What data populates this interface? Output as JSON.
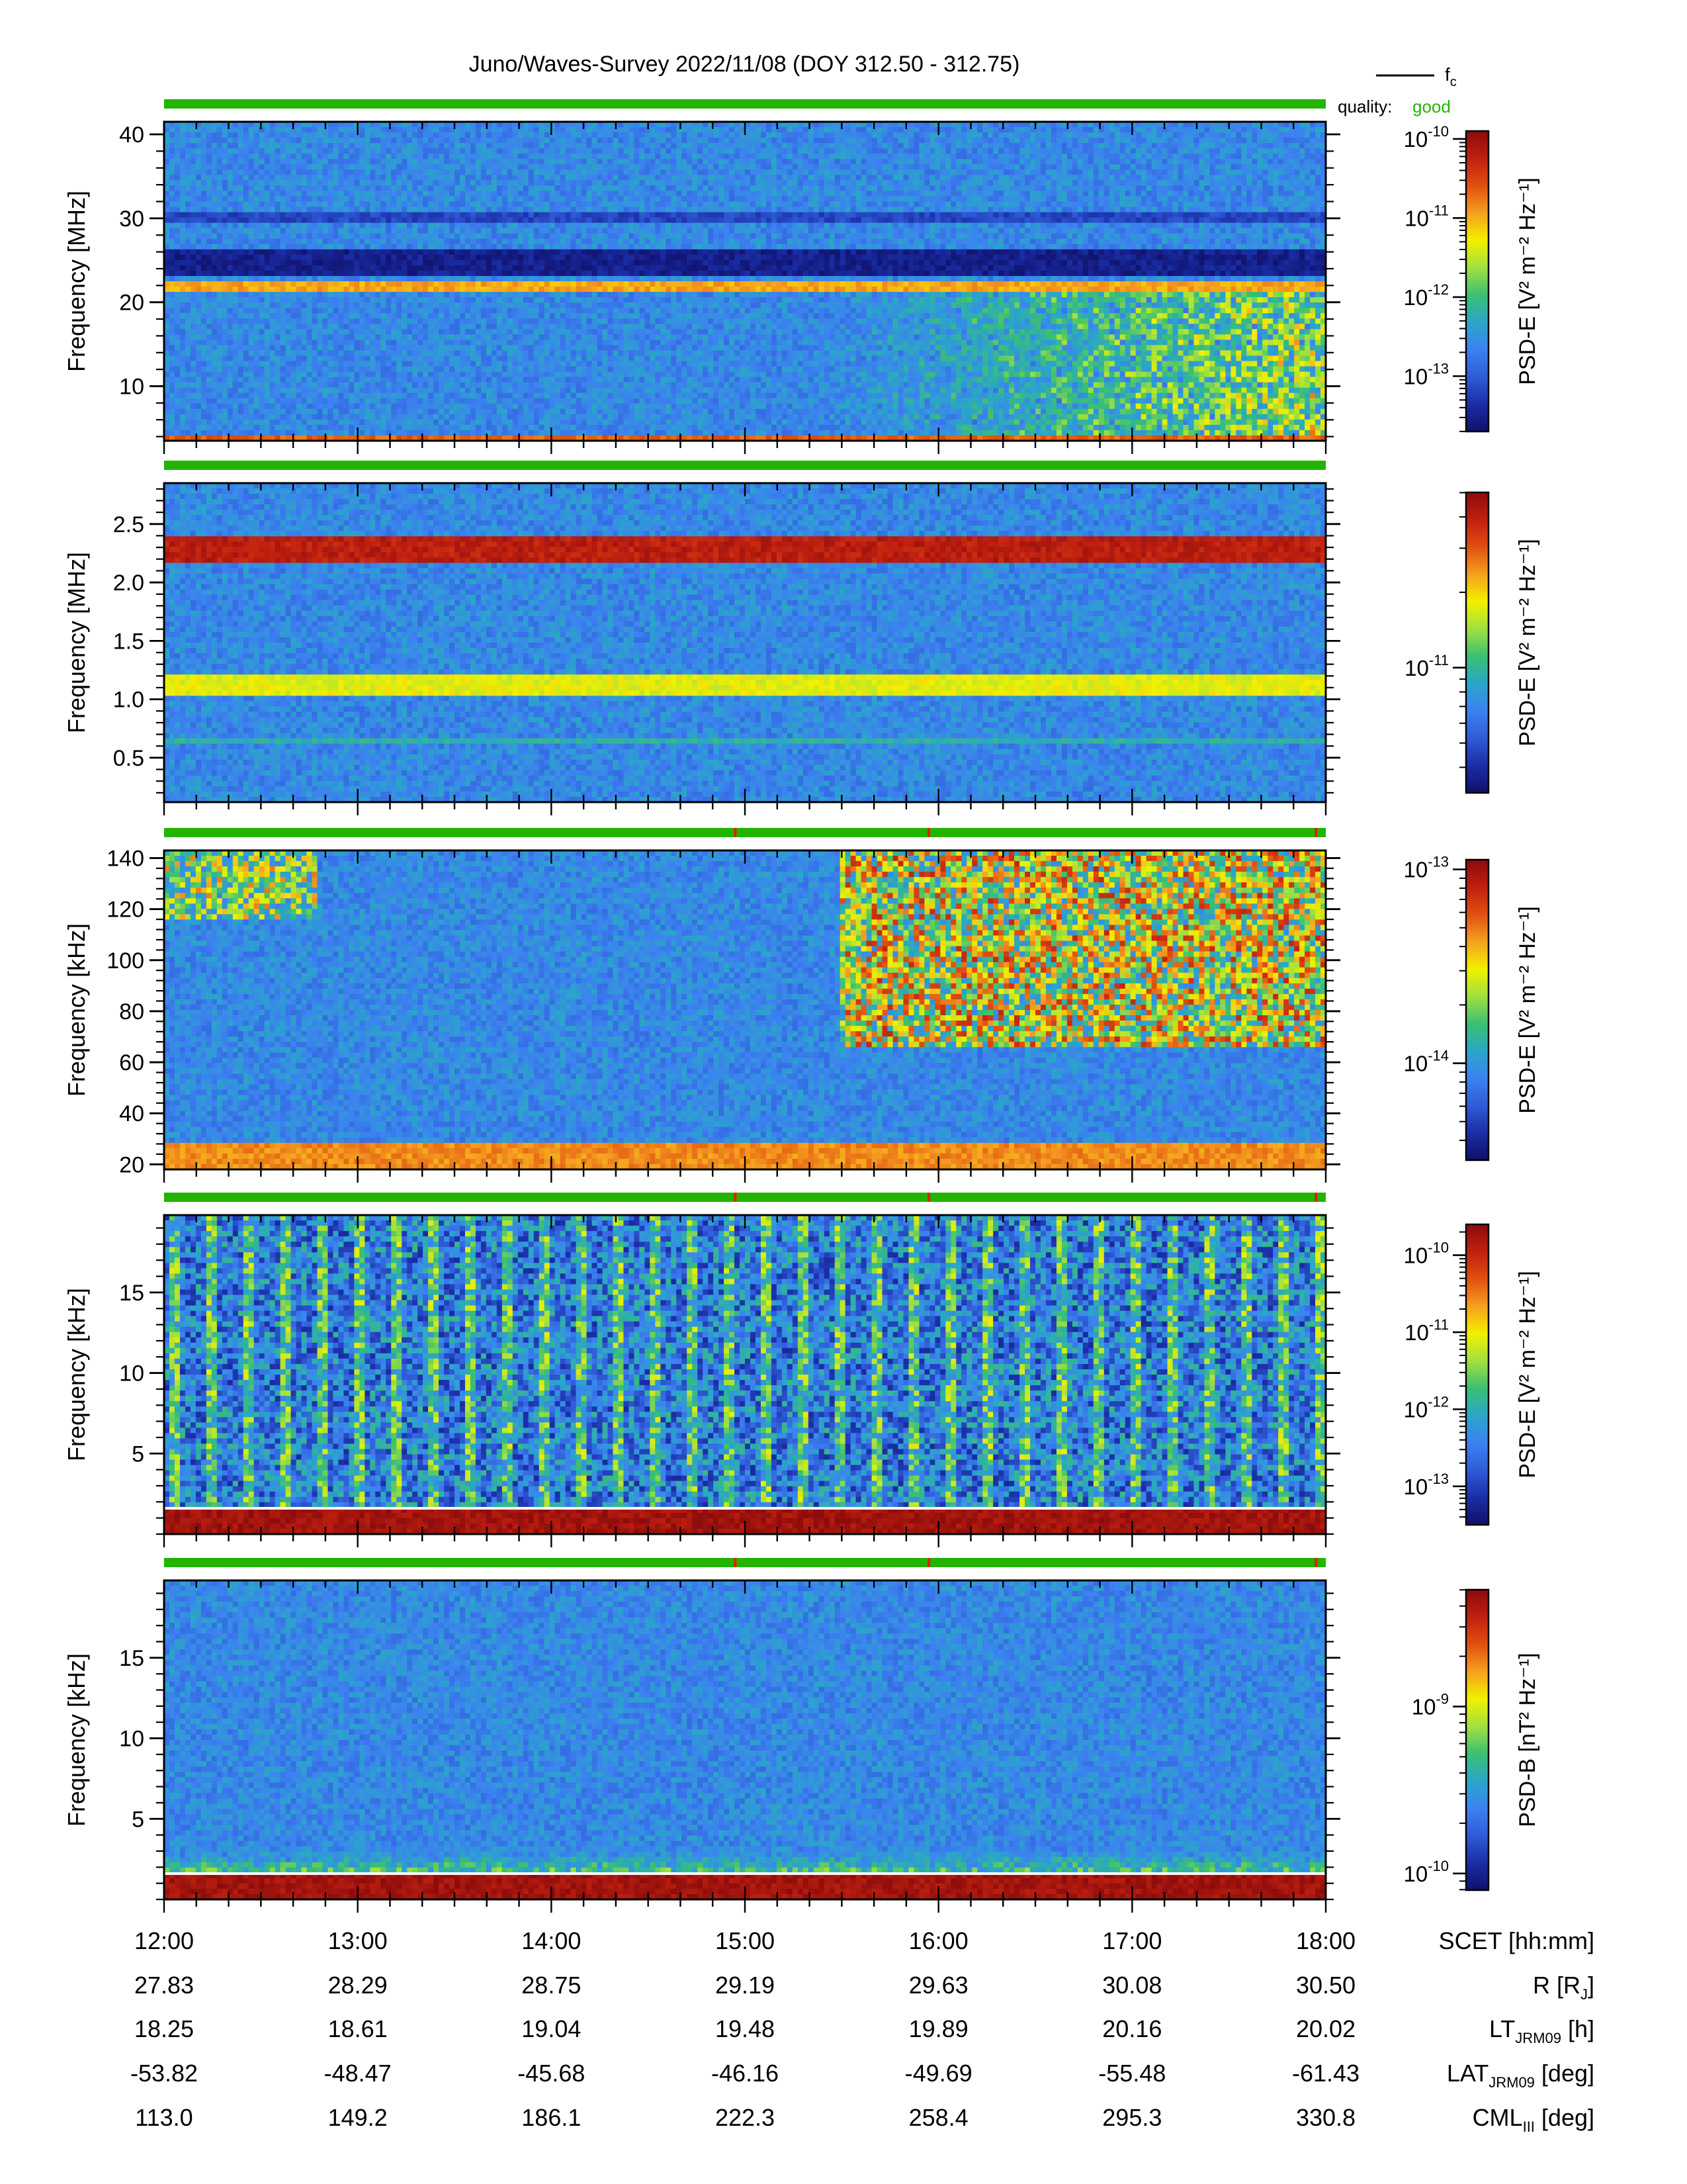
{
  "title": "Juno/Waves-Survey  2022/11/08 (DOY 312.50 - 312.75)",
  "legend": {
    "line_label": "f",
    "line_label_sub": "c",
    "quality_label": "quality:",
    "quality_value": "good"
  },
  "colors": {
    "quality_good": "#22b400",
    "quality_flag": "#e02000",
    "fc_line": "#ffffff",
    "cmap": [
      "#10106a",
      "#1a2ea6",
      "#2f5cd8",
      "#3c82f0",
      "#2aa6c8",
      "#3cc070",
      "#a0e040",
      "#f2f000",
      "#f5a020",
      "#e05010",
      "#c02010",
      "#8a0c0c"
    ]
  },
  "time_axis": {
    "rows": [
      {
        "label_main": "SCET",
        "label_sub": "",
        "label_tail": " [hh:mm]",
        "values": [
          "12:00",
          "13:00",
          "14:00",
          "15:00",
          "16:00",
          "17:00",
          "18:00"
        ]
      },
      {
        "label_main": "R [R",
        "label_sub": "J",
        "label_tail": "]",
        "values": [
          "27.83",
          "28.29",
          "28.75",
          "29.19",
          "29.63",
          "30.08",
          "30.50"
        ]
      },
      {
        "label_main": "LT",
        "label_sub": "JRM09",
        "label_tail": " [h]",
        "values": [
          "18.25",
          "18.61",
          "19.04",
          "19.48",
          "19.89",
          "20.16",
          "20.02"
        ]
      },
      {
        "label_main": "LAT",
        "label_sub": "JRM09",
        "label_tail": " [deg]",
        "values": [
          "-53.82",
          "-48.47",
          "-45.68",
          "-46.16",
          "-49.69",
          "-55.48",
          "-61.43"
        ]
      },
      {
        "label_main": "CML",
        "label_sub": "III",
        "label_tail": " [deg]",
        "values": [
          "113.0",
          "149.2",
          "186.1",
          "222.3",
          "258.4",
          "295.3",
          "330.8"
        ]
      }
    ]
  },
  "chart_data": [
    {
      "type": "heatmap",
      "ylabel": "Frequency [MHz]",
      "xlim_hours": [
        12,
        18
      ],
      "ylim": [
        3.5,
        41.5
      ],
      "yticks": [
        10,
        20,
        30,
        40
      ],
      "ytick_labels": [
        "10",
        "20",
        "30",
        "40"
      ],
      "colorbar": {
        "label": "PSD-E [V² m⁻² Hz⁻¹]",
        "log": true,
        "range_exp": [
          -13.7,
          -9.9
        ],
        "ticks": [
          {
            "exp": "-10"
          },
          {
            "exp": "-11"
          },
          {
            "exp": "-12"
          },
          {
            "exp": "-13"
          }
        ]
      },
      "quality_flags_hours": [],
      "fc_line": false,
      "features": [
        {
          "type": "band",
          "y": [
            21.2,
            22.8
          ],
          "level": 0.72
        },
        {
          "type": "band",
          "y": [
            23,
            26.5
          ],
          "level": 0.05
        },
        {
          "type": "band",
          "y": [
            29.5,
            31
          ],
          "level": 0.14
        },
        {
          "type": "band",
          "y": [
            3.7,
            4.3
          ],
          "level": 0.8
        },
        {
          "type": "noise_grow",
          "start_hour": 15.4,
          "y": [
            4,
            21
          ],
          "level": 0.45
        }
      ]
    },
    {
      "type": "heatmap",
      "ylabel": "Frequency [MHz]",
      "xlim_hours": [
        12,
        18
      ],
      "ylim": [
        0.12,
        2.85
      ],
      "yticks": [
        0.5,
        1.0,
        1.5,
        2.0,
        2.5
      ],
      "ytick_labels": [
        "0.5",
        "1.0",
        "1.5",
        "2.0",
        "2.5"
      ],
      "colorbar": {
        "label": "PSD-E [V² m⁻² Hz⁻¹]",
        "log": true,
        "range_exp": [
          -11.5,
          -10.3
        ],
        "ticks": [
          {
            "exp": "-11"
          }
        ]
      },
      "quality_flags_hours": [],
      "fc_line": false,
      "features": [
        {
          "type": "band",
          "y": [
            2.15,
            2.38
          ],
          "level": 0.92
        },
        {
          "type": "band",
          "y": [
            1.05,
            1.22
          ],
          "level": 0.62
        },
        {
          "type": "band",
          "y": [
            0.6,
            0.66
          ],
          "level": 0.4
        }
      ]
    },
    {
      "type": "heatmap",
      "ylabel": "Frequency [kHz]",
      "xlim_hours": [
        12,
        18
      ],
      "ylim": [
        18,
        143
      ],
      "yticks": [
        20,
        40,
        60,
        80,
        100,
        120,
        140
      ],
      "ytick_labels": [
        "20",
        "40",
        "60",
        "80",
        "100",
        "120",
        "140"
      ],
      "colorbar": {
        "label": "PSD-E [V² m⁻² Hz⁻¹]",
        "log": true,
        "range_exp": [
          -14.5,
          -12.95
        ],
        "ticks": [
          {
            "exp": "-13"
          },
          {
            "exp": "-14"
          }
        ]
      },
      "quality_flags_hours": [
        14.95,
        15.95,
        17.95
      ],
      "fc_line": false,
      "features": [
        {
          "type": "burst",
          "start_hour": 15.5,
          "y": [
            65,
            143
          ],
          "level": 0.82
        },
        {
          "type": "burst",
          "start_hour": 12.0,
          "end_hour": 12.8,
          "y": [
            115,
            143
          ],
          "level": 0.7
        },
        {
          "type": "floor",
          "y": [
            18,
            28
          ],
          "level": 0.75
        }
      ]
    },
    {
      "type": "heatmap",
      "ylabel": "Frequency [kHz]",
      "xlim_hours": [
        12,
        18
      ],
      "ylim": [
        0,
        19.8
      ],
      "yticks": [
        5,
        10,
        15
      ],
      "ytick_labels": [
        "5",
        "10",
        "15"
      ],
      "colorbar": {
        "label": "PSD-E [V² m⁻² Hz⁻¹]",
        "log": true,
        "range_exp": [
          -13.5,
          -9.6
        ],
        "ticks": [
          {
            "exp": "-10"
          },
          {
            "exp": "-11"
          },
          {
            "exp": "-12"
          },
          {
            "exp": "-13"
          }
        ]
      },
      "quality_flags_hours": [
        14.95,
        15.95,
        17.95
      ],
      "fc_line": true,
      "fc_khz": 1.6,
      "features": [
        {
          "type": "floor",
          "y": [
            0,
            1.5
          ],
          "level": 0.96
        },
        {
          "type": "stripes",
          "y": [
            1.5,
            19.8
          ],
          "level": 0.35
        }
      ]
    },
    {
      "type": "heatmap",
      "ylabel": "Frequency [kHz]",
      "xlim_hours": [
        12,
        18
      ],
      "ylim": [
        0,
        19.8
      ],
      "yticks": [
        5,
        10,
        15
      ],
      "ytick_labels": [
        "5",
        "10",
        "15"
      ],
      "colorbar": {
        "label": "PSD-B [nT² Hz⁻¹]",
        "log": true,
        "range_exp": [
          -10.1,
          -8.3
        ],
        "ticks": [
          {
            "exp": "-9"
          },
          {
            "exp": "-10"
          }
        ]
      },
      "quality_flags_hours": [
        14.95,
        15.95,
        17.95
      ],
      "fc_line": true,
      "fc_khz": 1.6,
      "features": [
        {
          "type": "floor",
          "y": [
            0,
            1.5
          ],
          "level": 0.96
        },
        {
          "type": "gradient_low",
          "y": [
            1.5,
            5
          ],
          "level": 0.55
        }
      ]
    }
  ]
}
